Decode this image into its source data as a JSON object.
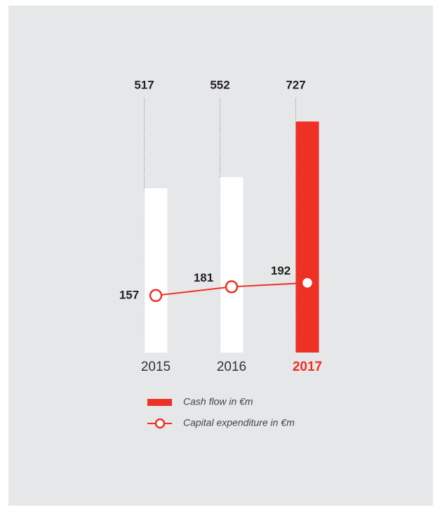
{
  "chart_data": {
    "type": "bar",
    "categories": [
      "2015",
      "2016",
      "2017"
    ],
    "highlight": 2,
    "highlight_color": "#ee3124",
    "series": [
      {
        "name": "Cash flow in €m",
        "type": "bar",
        "color": "#ee3124",
        "colors": [
          "#ffffff",
          "#ffffff",
          "#ee3124"
        ],
        "values": [
          517,
          552,
          727
        ]
      },
      {
        "name": "Capital expenditure in €m",
        "type": "line",
        "axis": "y2",
        "color": "#ee3124",
        "values": [
          157,
          181,
          192
        ]
      }
    ],
    "ylim": [
      0,
      800
    ],
    "y2lim": [
      0,
      700
    ],
    "background": "#e6e7e8"
  }
}
